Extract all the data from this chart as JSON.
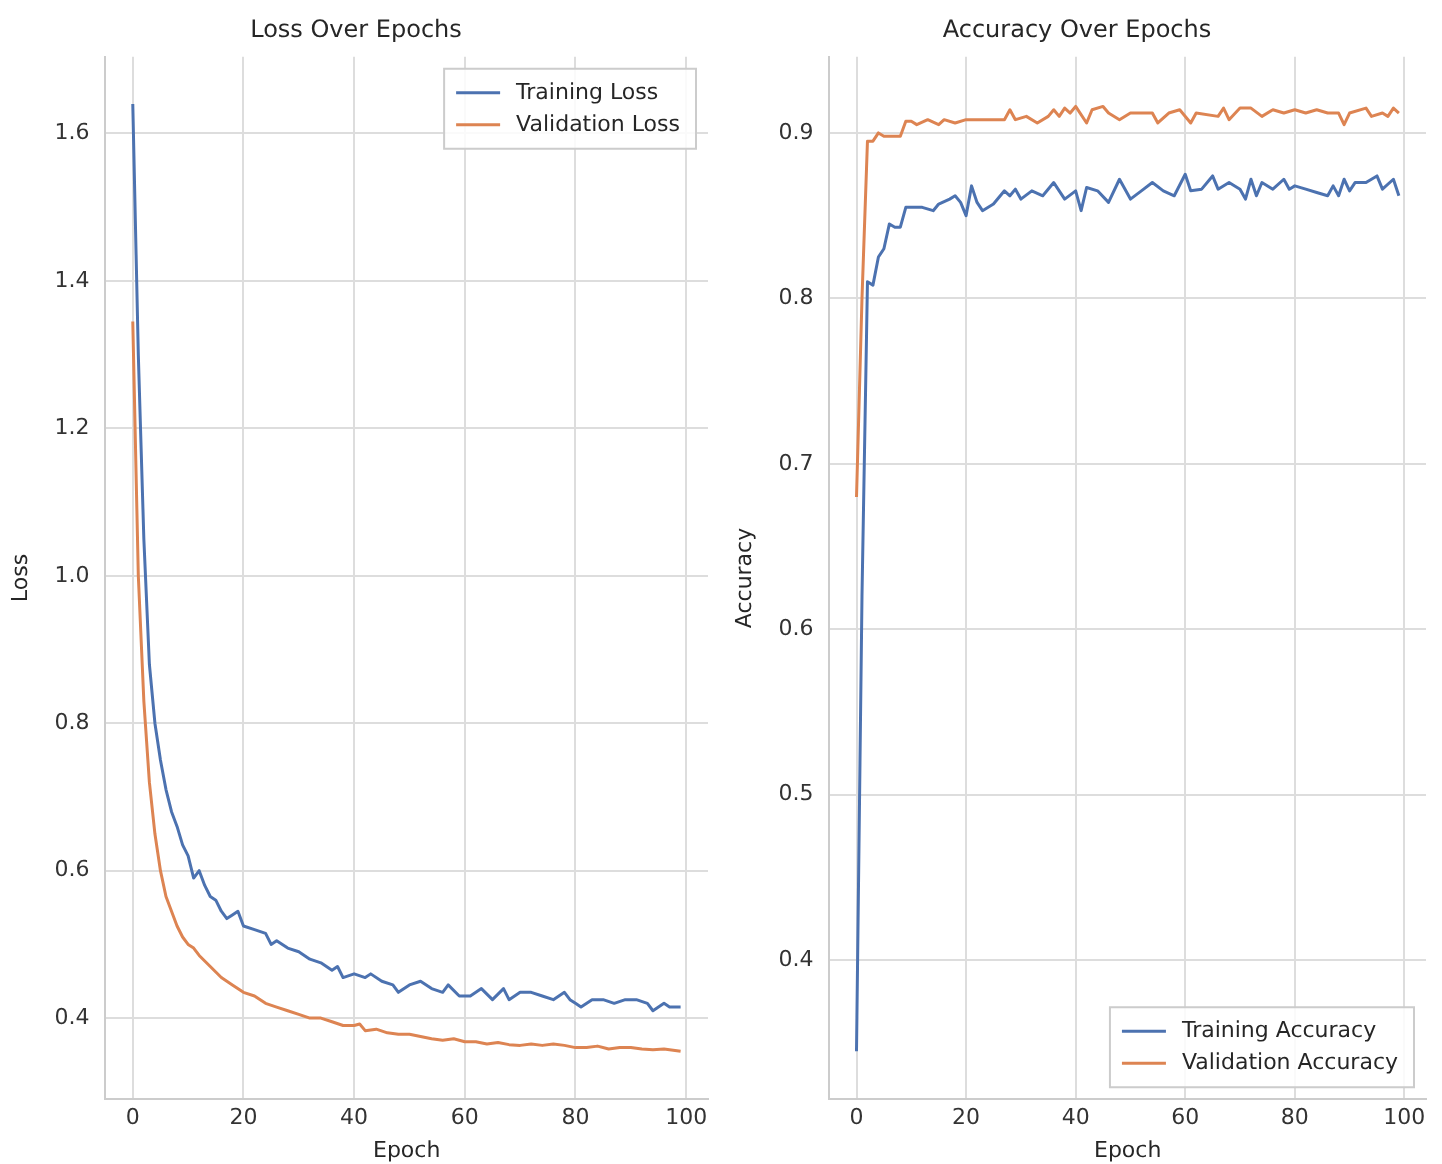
{
  "chart_data": [
    {
      "type": "line",
      "title": "Loss Over Epochs",
      "xlabel": "Epoch",
      "ylabel": "Loss",
      "xlim": [
        -4.95,
        103.95
      ],
      "ylim": [
        0.29,
        1.704
      ],
      "xticks": [
        0,
        20,
        40,
        60,
        80,
        100
      ],
      "yticks": [
        0.4,
        0.6,
        0.8,
        {
          "value": 1,
          "label": "1.0"
        },
        1.2,
        1.4,
        1.6
      ],
      "grid": true,
      "legend": "top right",
      "series": [
        {
          "name": "Training Loss",
          "color": "#4c72b0",
          "x": [
            0,
            1,
            2,
            3,
            4,
            5,
            6,
            7,
            8,
            9,
            10,
            11,
            12,
            13,
            14,
            15,
            16,
            17,
            18,
            19,
            20,
            22,
            24,
            25,
            26,
            28,
            30,
            32,
            34,
            36,
            37,
            38,
            40,
            42,
            43,
            45,
            47,
            48,
            50,
            52,
            54,
            56,
            57,
            59,
            61,
            63,
            65,
            67,
            68,
            70,
            72,
            74,
            76,
            78,
            79,
            80,
            81,
            83,
            85,
            87,
            89,
            91,
            93,
            94,
            96,
            97,
            99
          ],
          "values": [
            1.64,
            1.3,
            1.05,
            0.88,
            0.8,
            0.75,
            0.71,
            0.68,
            0.66,
            0.635,
            0.62,
            0.59,
            0.6,
            0.58,
            0.565,
            0.56,
            0.545,
            0.535,
            0.54,
            0.545,
            0.525,
            0.52,
            0.515,
            0.5,
            0.505,
            0.495,
            0.49,
            0.48,
            0.475,
            0.465,
            0.47,
            0.455,
            0.46,
            0.455,
            0.46,
            0.45,
            0.445,
            0.435,
            0.445,
            0.45,
            0.44,
            0.435,
            0.445,
            0.43,
            0.43,
            0.44,
            0.425,
            0.44,
            0.425,
            0.435,
            0.435,
            0.43,
            0.425,
            0.435,
            0.425,
            0.42,
            0.415,
            0.425,
            0.425,
            0.42,
            0.425,
            0.425,
            0.42,
            0.41,
            0.42,
            0.415,
            0.415
          ]
        },
        {
          "name": "Validation Loss",
          "color": "#dd8452",
          "x": [
            0,
            1,
            2,
            3,
            4,
            5,
            6,
            7,
            8,
            9,
            10,
            11,
            12,
            14,
            16,
            18,
            20,
            22,
            24,
            26,
            28,
            30,
            32,
            34,
            36,
            38,
            40,
            41,
            42,
            44,
            46,
            48,
            50,
            52,
            54,
            56,
            58,
            60,
            62,
            64,
            66,
            68,
            70,
            72,
            74,
            76,
            78,
            80,
            82,
            84,
            86,
            88,
            90,
            92,
            94,
            96,
            98,
            99
          ],
          "values": [
            1.345,
            1.0,
            0.83,
            0.72,
            0.65,
            0.6,
            0.565,
            0.545,
            0.525,
            0.51,
            0.5,
            0.495,
            0.485,
            0.47,
            0.455,
            0.445,
            0.435,
            0.43,
            0.42,
            0.415,
            0.41,
            0.405,
            0.4,
            0.4,
            0.395,
            0.39,
            0.39,
            0.392,
            0.383,
            0.385,
            0.38,
            0.378,
            0.378,
            0.375,
            0.372,
            0.37,
            0.372,
            0.368,
            0.368,
            0.365,
            0.367,
            0.364,
            0.363,
            0.365,
            0.363,
            0.365,
            0.363,
            0.36,
            0.36,
            0.362,
            0.358,
            0.36,
            0.36,
            0.358,
            0.357,
            0.358,
            0.356,
            0.355
          ]
        }
      ]
    },
    {
      "type": "line",
      "title": "Accuracy Over Epochs",
      "xlabel": "Epoch",
      "ylabel": "Accuracy",
      "xlim": [
        -4.95,
        103.95
      ],
      "ylim": [
        0.316,
        0.946
      ],
      "xticks": [
        0,
        20,
        40,
        60,
        80,
        100
      ],
      "yticks": [
        0.4,
        0.5,
        0.6,
        0.7,
        0.8,
        0.9
      ],
      "grid": true,
      "legend": "bottom right",
      "series": [
        {
          "name": "Training Accuracy",
          "color": "#4c72b0",
          "x": [
            0,
            1,
            2,
            3,
            4,
            5,
            6,
            7,
            8,
            9,
            12,
            14,
            15,
            17,
            18,
            19,
            20,
            21,
            22,
            23,
            25,
            27,
            28,
            29,
            30,
            32,
            34,
            36,
            38,
            40,
            41,
            42,
            44,
            46,
            48,
            50,
            52,
            54,
            56,
            58,
            60,
            61,
            63,
            65,
            66,
            68,
            70,
            71,
            72,
            73,
            74,
            76,
            78,
            79,
            80,
            82,
            84,
            86,
            87,
            88,
            89,
            90,
            91,
            93,
            95,
            96,
            98,
            99
          ],
          "values": [
            0.345,
            0.62,
            0.81,
            0.808,
            0.825,
            0.83,
            0.845,
            0.843,
            0.843,
            0.855,
            0.855,
            0.853,
            0.857,
            0.86,
            0.862,
            0.858,
            0.85,
            0.868,
            0.858,
            0.853,
            0.857,
            0.865,
            0.862,
            0.866,
            0.86,
            0.865,
            0.862,
            0.87,
            0.86,
            0.865,
            0.853,
            0.867,
            0.865,
            0.858,
            0.872,
            0.86,
            0.865,
            0.87,
            0.865,
            0.862,
            0.875,
            0.865,
            0.866,
            0.874,
            0.866,
            0.87,
            0.866,
            0.86,
            0.872,
            0.862,
            0.87,
            0.866,
            0.872,
            0.866,
            0.868,
            0.866,
            0.864,
            0.862,
            0.868,
            0.862,
            0.872,
            0.865,
            0.87,
            0.87,
            0.874,
            0.866,
            0.872,
            0.862
          ]
        },
        {
          "name": "Validation Accuracy",
          "color": "#dd8452",
          "x": [
            0,
            1,
            2,
            3,
            4,
            5,
            8,
            9,
            10,
            11,
            13,
            15,
            16,
            18,
            20,
            27,
            28,
            29,
            31,
            33,
            35,
            36,
            37,
            38,
            39,
            40,
            42,
            43,
            45,
            46,
            48,
            50,
            54,
            55,
            57,
            59,
            61,
            62,
            66,
            67,
            68,
            70,
            72,
            74,
            76,
            78,
            80,
            82,
            84,
            86,
            88,
            89,
            90,
            93,
            94,
            96,
            97,
            98,
            99
          ],
          "values": [
            0.68,
            0.8,
            0.895,
            0.895,
            0.9,
            0.898,
            0.898,
            0.907,
            0.907,
            0.905,
            0.908,
            0.905,
            0.908,
            0.906,
            0.908,
            0.908,
            0.914,
            0.908,
            0.91,
            0.906,
            0.91,
            0.914,
            0.91,
            0.915,
            0.912,
            0.916,
            0.906,
            0.914,
            0.916,
            0.912,
            0.908,
            0.912,
            0.912,
            0.906,
            0.912,
            0.914,
            0.906,
            0.912,
            0.91,
            0.915,
            0.908,
            0.915,
            0.915,
            0.91,
            0.914,
            0.912,
            0.914,
            0.912,
            0.914,
            0.912,
            0.912,
            0.905,
            0.912,
            0.915,
            0.91,
            0.912,
            0.91,
            0.915,
            0.912
          ]
        }
      ]
    }
  ]
}
